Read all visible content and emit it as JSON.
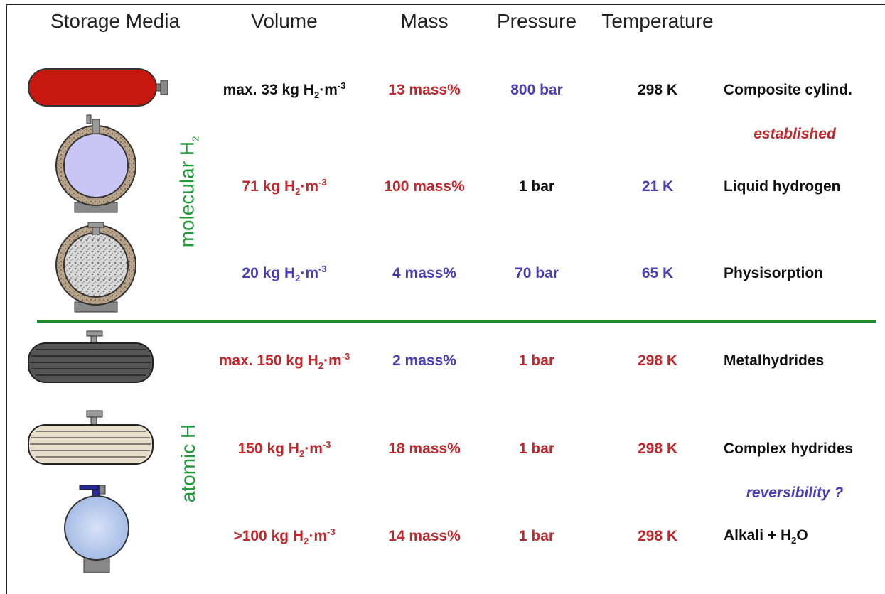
{
  "header": {
    "columns": [
      "Storage Media",
      "Volume",
      "Mass",
      "Pressure",
      "Temperature"
    ]
  },
  "groups": [
    {
      "text": "molecular H",
      "sub": "2",
      "color": "#1e9a3a"
    },
    {
      "text": "atomic H",
      "color": "#1e9a3a"
    }
  ],
  "rows": [
    {
      "volume": {
        "text": "max. 33 kg H",
        "sub": "2",
        "unit": "·m",
        "sup": "-3",
        "color": "#111111"
      },
      "mass": {
        "text": "13 mass%",
        "color": "#c0282d"
      },
      "pressure": {
        "text": "800 bar",
        "color": "#4a3fb5"
      },
      "temperature": {
        "text": "298 K",
        "color": "#111111"
      },
      "name": {
        "text": "Composite cylind."
      },
      "note": {
        "text": "established",
        "color": "#c0282d"
      }
    },
    {
      "volume": {
        "text": "71 kg H",
        "sub": "2",
        "unit": "·m",
        "sup": "-3",
        "color": "#c0282d"
      },
      "mass": {
        "text": "100 mass%",
        "color": "#c0282d"
      },
      "pressure": {
        "text": "1 bar",
        "color": "#111111"
      },
      "temperature": {
        "text": "21 K",
        "color": "#4a3fb5"
      },
      "name": {
        "text": "Liquid hydrogen"
      }
    },
    {
      "volume": {
        "text": "20 kg H",
        "sub": "2",
        "unit": "·m",
        "sup": "-3",
        "color": "#4a3fb5"
      },
      "mass": {
        "text": "4 mass%",
        "color": "#4a3fb5"
      },
      "pressure": {
        "text": "70 bar",
        "color": "#4a3fb5"
      },
      "temperature": {
        "text": "65 K",
        "color": "#4a3fb5"
      },
      "name": {
        "text": "Physisorption"
      }
    },
    {
      "volume": {
        "text": "max. 150 kg H",
        "sub": "2",
        "unit": "·m",
        "sup": "-3",
        "color": "#c0282d"
      },
      "mass": {
        "text": "2 mass%",
        "color": "#4a3fb5"
      },
      "pressure": {
        "text": "1 bar",
        "color": "#c0282d"
      },
      "temperature": {
        "text": "298 K",
        "color": "#c0282d"
      },
      "name": {
        "text": "Metalhydrides"
      }
    },
    {
      "volume": {
        "text": "150 kg H",
        "sub": "2",
        "unit": "·m",
        "sup": "-3",
        "color": "#c0282d"
      },
      "mass": {
        "text": "18 mass%",
        "color": "#c0282d"
      },
      "pressure": {
        "text": "1 bar",
        "color": "#c0282d"
      },
      "temperature": {
        "text": "298 K",
        "color": "#c0282d"
      },
      "name": {
        "text": "Complex hydrides"
      },
      "note": {
        "text": "reversibility ?",
        "color": "#4a3fb5"
      }
    },
    {
      "volume": {
        "text": ">100 kg H",
        "sub": "2",
        "unit": "·m",
        "sup": "-3",
        "color": "#c0282d"
      },
      "mass": {
        "text": "14 mass%",
        "color": "#c0282d"
      },
      "pressure": {
        "text": "1 bar",
        "color": "#c0282d"
      },
      "temperature": {
        "text": "298 K",
        "color": "#c0282d"
      },
      "name": {
        "text": "Alkali + H",
        "sub": "2",
        "after": "O"
      }
    }
  ]
}
